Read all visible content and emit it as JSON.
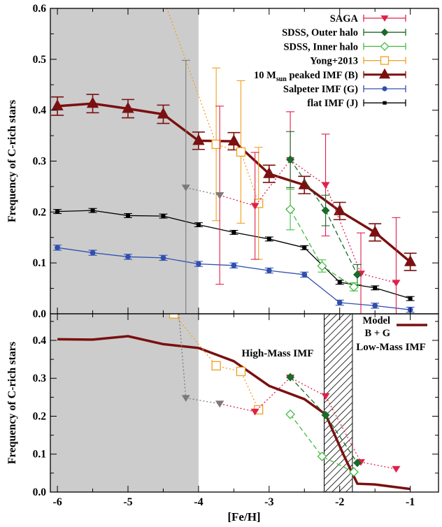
{
  "chart_data": [
    {
      "type": "line",
      "panel": "top",
      "ylabel": "Frequency of C-rich stars",
      "xlim": [
        -6.1,
        -0.6
      ],
      "ylim": [
        0,
        0.6
      ],
      "xticks": [
        "-6",
        "-5",
        "-4",
        "-3",
        "-2",
        "-1"
      ],
      "yticks": [
        "0.0",
        "0.1",
        "0.2",
        "0.3",
        "0.4",
        "0.5",
        "0.6"
      ],
      "shaded_region": {
        "x": [
          -6.1,
          -4.0
        ],
        "color": "#cccccc"
      },
      "legend_position": "top-right",
      "legend": [
        {
          "label": "SAGA",
          "color": "#e0204a",
          "marker": "triangle-down"
        },
        {
          "label": "SDSS, Outer halo",
          "color": "#1a6a2a",
          "marker": "diamond-filled"
        },
        {
          "label": "SDSS, Inner halo",
          "color": "#44bb44",
          "marker": "diamond-open"
        },
        {
          "label": "Yong+2013",
          "color": "#f0a020",
          "marker": "square-open"
        },
        {
          "label_main": "10 M",
          "label_sub": "sun",
          "label_rest": " peaked IMF (B)",
          "color": "#7a1010",
          "marker": "triangle-up"
        },
        {
          "label": "Salpeter IMF (G)",
          "color": "#3050b0",
          "marker": "circle"
        },
        {
          "label": "flat IMF (J)",
          "color": "#000000",
          "marker": "square-small"
        }
      ],
      "series": [
        {
          "key": "peaked",
          "color": "#7a1010",
          "style": "solid-thick",
          "marker": "triangle-up",
          "x": [
            -6.0,
            -5.5,
            -5.0,
            -4.5,
            -4.0,
            -3.5,
            -3.0,
            -2.5,
            -2.0,
            -1.5,
            -1.0
          ],
          "y": [
            0.408,
            0.413,
            0.403,
            0.392,
            0.34,
            0.339,
            0.275,
            0.253,
            0.202,
            0.16,
            0.102
          ],
          "err": [
            0.018,
            0.018,
            0.018,
            0.018,
            0.017,
            0.017,
            0.017,
            0.017,
            0.017,
            0.017,
            0.017
          ]
        },
        {
          "key": "flat",
          "color": "#000000",
          "style": "solid",
          "marker": "square-small",
          "x": [
            -6.0,
            -5.5,
            -5.0,
            -4.5,
            -4.0,
            -3.5,
            -3.0,
            -2.5,
            -2.0,
            -1.5,
            -1.0
          ],
          "y": [
            0.201,
            0.203,
            0.193,
            0.192,
            0.175,
            0.16,
            0.147,
            0.13,
            0.062,
            0.051,
            0.03
          ],
          "err": [
            0.004,
            0.004,
            0.004,
            0.004,
            0.004,
            0.004,
            0.004,
            0.004,
            0.004,
            0.004,
            0.004
          ]
        },
        {
          "key": "salpeter",
          "color": "#3050b0",
          "style": "solid",
          "marker": "circle",
          "x": [
            -6.0,
            -5.5,
            -5.0,
            -4.5,
            -4.0,
            -3.5,
            -3.0,
            -2.5,
            -2.0,
            -1.5,
            -1.0
          ],
          "y": [
            0.13,
            0.12,
            0.112,
            0.11,
            0.098,
            0.095,
            0.085,
            0.077,
            0.022,
            0.016,
            0.008
          ],
          "err": [
            0.005,
            0.005,
            0.005,
            0.005,
            0.005,
            0.005,
            0.005,
            0.005,
            0.005,
            0.005,
            0.005
          ]
        },
        {
          "key": "yong",
          "color": "#f0a020",
          "style": "dotted",
          "marker": "square-open",
          "x": [
            -4.5,
            -3.75,
            -3.4,
            -3.15
          ],
          "y": [
            0.62,
            0.333,
            0.318,
            0.217
          ],
          "err": [
            0.0,
            0.15,
            0.14,
            0.11
          ]
        },
        {
          "key": "saga",
          "color": "#e0204a",
          "style": "dotted",
          "marker": "triangle-down",
          "x": [
            -3.7,
            -3.2,
            -2.7,
            -2.2,
            -1.7,
            -1.2
          ],
          "y": [
            0.233,
            0.212,
            0.302,
            0.253,
            0.079,
            0.061
          ],
          "err": [
            0.175,
            0.105,
            0.095,
            0.1,
            0.08,
            0.128
          ]
        },
        {
          "key": "sdss_outer",
          "color": "#1a6a2a",
          "style": "dashed",
          "marker": "diamond-filled",
          "x": [
            -2.7,
            -2.2,
            -1.75
          ],
          "y": [
            0.303,
            0.203,
            0.077
          ],
          "err": [
            0.055,
            0.03,
            0.02
          ]
        },
        {
          "key": "sdss_inner",
          "color": "#44bb44",
          "style": "dashed",
          "marker": "diamond-open",
          "x": [
            -2.7,
            -2.25,
            -1.8
          ],
          "y": [
            0.205,
            0.094,
            0.053
          ],
          "err": [
            0.04,
            0.012,
            0.008
          ]
        },
        {
          "key": "grey",
          "color": "#7a7a7a",
          "style": "dotted",
          "marker": "triangle-down",
          "x": [
            -4.18,
            -3.7
          ],
          "y": [
            0.248,
            0.233
          ],
          "err": [
            0.25,
            0.0
          ]
        }
      ]
    },
    {
      "type": "line",
      "panel": "bottom",
      "ylabel": "Frequency of C-rich stars",
      "xlabel": "[Fe/H]",
      "xlim": [
        -6.1,
        -0.6
      ],
      "ylim": [
        0,
        0.47
      ],
      "xticks": [
        "-6",
        "-5",
        "-4",
        "-3",
        "-2",
        "-1"
      ],
      "yticks": [
        "0.0",
        "0.1",
        "0.2",
        "0.3",
        "0.4"
      ],
      "shaded_region": {
        "x": [
          -6.1,
          -4.0
        ],
        "color": "#cccccc"
      },
      "hatched_region": {
        "x": [
          -2.22,
          -1.82
        ]
      },
      "annotations": [
        "High-Mass IMF",
        "Low-Mass IMF"
      ],
      "legend_position": "top-right",
      "legend": [
        {
          "label": "Model",
          "label2": "B + G",
          "color": "#7a1010"
        }
      ],
      "series": [
        {
          "key": "model",
          "color": "#7a1010",
          "style": "solid-thick",
          "marker": "none",
          "x": [
            -6.0,
            -5.5,
            -5.0,
            -4.5,
            -4.0,
            -3.5,
            -3.0,
            -2.5,
            -2.2,
            -1.95,
            -1.75,
            -1.5,
            -1.0
          ],
          "y": [
            0.403,
            0.402,
            0.411,
            0.39,
            0.38,
            0.345,
            0.28,
            0.245,
            0.205,
            0.1,
            0.022,
            0.02,
            0.008
          ]
        },
        {
          "key": "yong",
          "color": "#f0a020",
          "style": "dotted",
          "marker": "square-open",
          "x": [
            -4.35,
            -3.75,
            -3.4,
            -3.15
          ],
          "y": [
            0.47,
            0.333,
            0.318,
            0.217
          ]
        },
        {
          "key": "saga",
          "color": "#e0204a",
          "style": "dotted",
          "marker": "triangle-down",
          "x": [
            -3.7,
            -3.2,
            -2.7,
            -2.2,
            -1.7,
            -1.2
          ],
          "y": [
            0.233,
            0.212,
            0.302,
            0.253,
            0.079,
            0.061
          ]
        },
        {
          "key": "sdss_outer",
          "color": "#1a6a2a",
          "style": "dashed",
          "marker": "diamond-filled",
          "x": [
            -2.7,
            -2.2,
            -1.75
          ],
          "y": [
            0.303,
            0.203,
            0.077
          ]
        },
        {
          "key": "sdss_inner",
          "color": "#44bb44",
          "style": "dashed",
          "marker": "diamond-open",
          "x": [
            -2.7,
            -2.25,
            -1.8
          ],
          "y": [
            0.205,
            0.094,
            0.053
          ]
        },
        {
          "key": "grey",
          "color": "#7a7a7a",
          "style": "dotted",
          "marker": "triangle-down",
          "x": [
            -4.18,
            -3.7
          ],
          "y": [
            0.248,
            0.233
          ],
          "arrow_from_y": 0.47
        }
      ]
    }
  ]
}
